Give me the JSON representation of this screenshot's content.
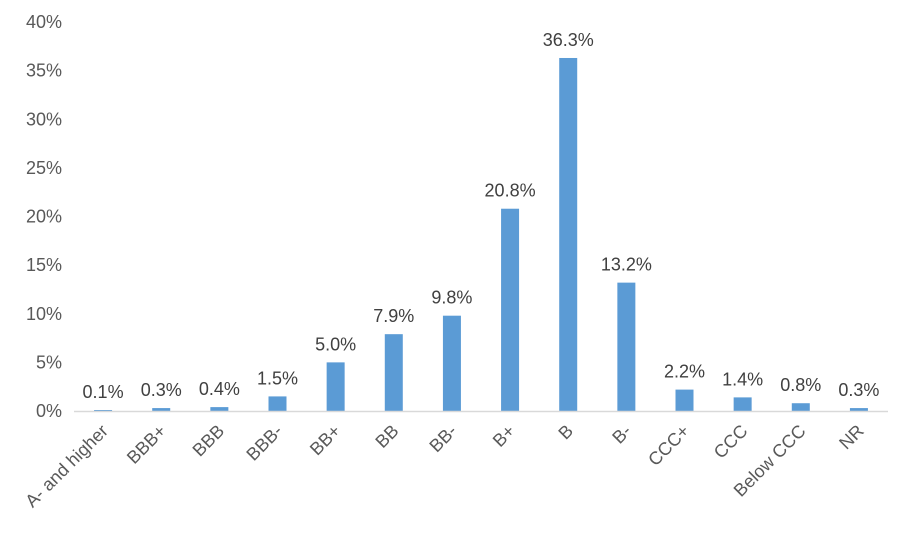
{
  "chart_data": {
    "type": "bar",
    "title": "",
    "xlabel": "",
    "ylabel": "",
    "ylim": [
      0,
      0.4
    ],
    "y_ticks": [
      "0%",
      "5%",
      "10%",
      "15%",
      "20%",
      "25%",
      "30%",
      "35%",
      "40%"
    ],
    "y_tick_values": [
      0,
      0.05,
      0.1,
      0.15,
      0.2,
      0.25,
      0.3,
      0.35,
      0.4
    ],
    "categories": [
      "A- and higher",
      "BBB+",
      "BBB",
      "BBB-",
      "BB+",
      "BB",
      "BB-",
      "B+",
      "B",
      "B-",
      "CCC+",
      "CCC",
      "Below CCC",
      "NR"
    ],
    "values": [
      0.001,
      0.003,
      0.004,
      0.015,
      0.05,
      0.079,
      0.098,
      0.208,
      0.363,
      0.132,
      0.022,
      0.014,
      0.008,
      0.003
    ],
    "data_labels": [
      "0.1%",
      "0.3%",
      "0.4%",
      "1.5%",
      "5.0%",
      "7.9%",
      "9.8%",
      "20.8%",
      "36.3%",
      "13.2%",
      "2.2%",
      "1.4%",
      "0.8%",
      "0.3%"
    ],
    "grid": false,
    "legend": "none",
    "bar_color": "#5B9BD5",
    "axis_color": "#D9D9D9"
  }
}
